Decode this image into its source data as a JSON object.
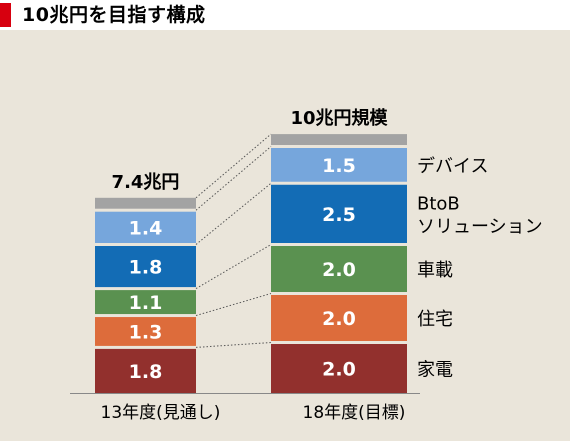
{
  "title": "10兆円を目指す構成",
  "colors": {
    "background": "#eae5da",
    "title_mark": "#d7000f",
    "cap": "#a3a3a3",
    "connector": "#555555"
  },
  "chart_data": {
    "type": "bar",
    "stacked": true,
    "title": "10兆円を目指す構成",
    "categories": [
      "13年度(見通し)",
      "18年度(目標)"
    ],
    "totals_labels": [
      "7.4兆円",
      "10兆円規模"
    ],
    "series": [
      {
        "name": "家電",
        "values": [
          1.8,
          2.0
        ],
        "value_labels": [
          "1.8",
          "2.0"
        ],
        "color": "#92302d"
      },
      {
        "name": "住宅",
        "values": [
          1.3,
          2.0
        ],
        "value_labels": [
          "1.3",
          "2.0"
        ],
        "color": "#dd6c3b"
      },
      {
        "name": "車載",
        "values": [
          1.1,
          2.0
        ],
        "value_labels": [
          "1.1",
          "2.0"
        ],
        "color": "#5a9150"
      },
      {
        "name": "BtoB\nソリューション",
        "values": [
          1.8,
          2.5
        ],
        "value_labels": [
          "1.8",
          "2.5"
        ],
        "color": "#136cb5"
      },
      {
        "name": "デバイス",
        "values": [
          1.4,
          1.5
        ],
        "value_labels": [
          "1.4",
          "1.5"
        ],
        "color": "#76a6dc"
      }
    ],
    "cap_values": [
      0.2,
      0.2
    ],
    "legend": "right"
  }
}
